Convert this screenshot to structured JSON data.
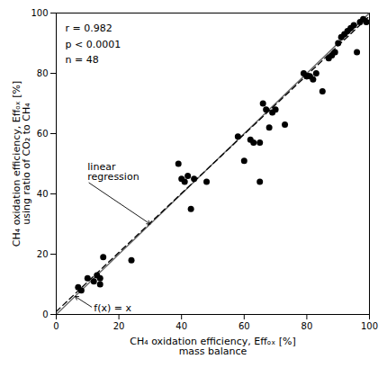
{
  "chart_data": {
    "type": "scatter",
    "xlabel": "CH₄ oxidation efficiency, Effₒₓ [%]\nmass balance",
    "ylabel": "CH₄ oxidation efficiency, Effₒₓ [%]\nusing ratio of CO₂ to CH₄",
    "series": [
      {
        "type": "line",
        "x": [
          0,
          100
        ],
        "values": [
          0,
          100
        ],
        "color": "#666666",
        "line_style": "solid"
      },
      {
        "type": "line",
        "x": [
          0,
          100
        ],
        "values": [
          0.98,
          98.98
        ],
        "color": "#000000",
        "line_style": "dashed"
      },
      {
        "type": "scatter",
        "x": [
          7,
          8,
          10,
          12,
          13,
          14,
          14,
          15,
          24,
          39,
          40,
          41,
          42,
          43,
          44,
          48,
          58,
          60,
          62,
          63,
          65,
          65,
          66,
          67,
          68,
          69,
          70,
          73,
          79,
          80,
          80,
          81,
          82,
          83,
          85,
          87,
          88,
          89,
          90,
          91,
          92,
          93,
          94,
          95,
          96,
          97,
          98,
          99
        ],
        "values": [
          9,
          8,
          12,
          11,
          13,
          12,
          10,
          19,
          18,
          50,
          45,
          44,
          46,
          35,
          45,
          44,
          59,
          51,
          58,
          57,
          44,
          57,
          70,
          68,
          62,
          67,
          68,
          63,
          80,
          79,
          79,
          79,
          78,
          80,
          74,
          85,
          86,
          87,
          90,
          92,
          93,
          94,
          95,
          96,
          87,
          97,
          98,
          97
        ],
        "color": "#000000",
        "marker": "circle"
      }
    ],
    "annotations": [
      {
        "text": "r = 0.982\np < 0.0001\nn = 48"
      },
      {
        "text": "linear\nregression",
        "x": 10,
        "y": 44,
        "arrow_to": [
          30,
          30
        ]
      },
      {
        "text": "f(x) = x",
        "x": 12,
        "y": 2,
        "arrow_to": [
          6,
          6
        ]
      }
    ],
    "xlim": [
      0,
      100
    ],
    "ylim": [
      0,
      100
    ],
    "xticks": [
      0,
      20,
      40,
      60,
      80,
      100
    ],
    "yticks": [
      0,
      20,
      40,
      60,
      80,
      100
    ],
    "grid": false
  }
}
